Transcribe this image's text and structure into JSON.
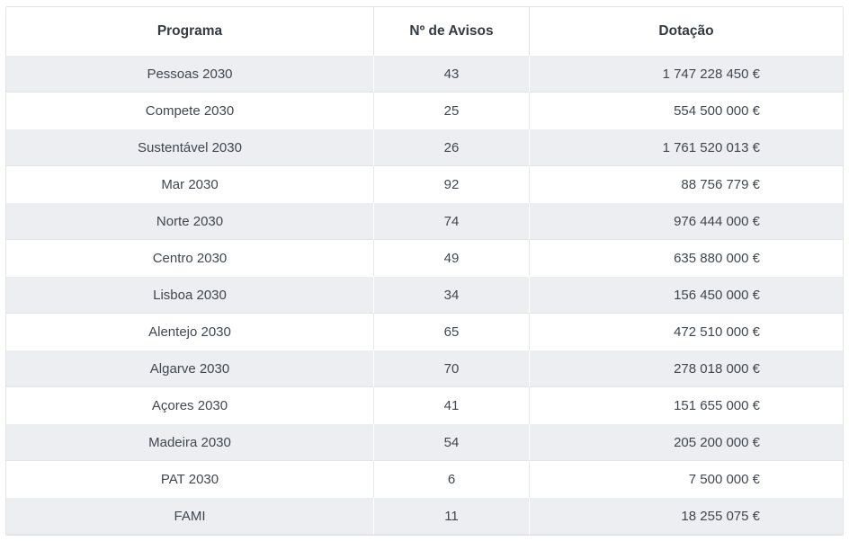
{
  "chart_data": {
    "type": "table",
    "columns": [
      "Programa",
      "Nº de Avisos",
      "Dotação"
    ],
    "rows": [
      {
        "programa": "Pessoas 2030",
        "avisos": 43,
        "dotacao": "1 747 228 450 €"
      },
      {
        "programa": "Compete 2030",
        "avisos": 25,
        "dotacao": "554 500 000 €"
      },
      {
        "programa": "Sustentável 2030",
        "avisos": 26,
        "dotacao": "1 761 520 013 €"
      },
      {
        "programa": "Mar 2030",
        "avisos": 92,
        "dotacao": "88 756 779 €"
      },
      {
        "programa": "Norte 2030",
        "avisos": 74,
        "dotacao": "976 444 000 €"
      },
      {
        "programa": "Centro 2030",
        "avisos": 49,
        "dotacao": "635 880 000 €"
      },
      {
        "programa": "Lisboa 2030",
        "avisos": 34,
        "dotacao": "156 450 000 €"
      },
      {
        "programa": "Alentejo 2030",
        "avisos": 65,
        "dotacao": "472 510 000 €"
      },
      {
        "programa": "Algarve 2030",
        "avisos": 70,
        "dotacao": "278 018 000 €"
      },
      {
        "programa": "Açores 2030",
        "avisos": 41,
        "dotacao": "151 655 000 €"
      },
      {
        "programa": "Madeira 2030",
        "avisos": 54,
        "dotacao": "205 200 000 €"
      },
      {
        "programa": "PAT 2030",
        "avisos": 6,
        "dotacao": "7 500 000 €"
      },
      {
        "programa": "FAMI",
        "avisos": 11,
        "dotacao": "18 255 075 €"
      }
    ],
    "layout": {
      "striped": true,
      "stripe_starts_on_first_row": true,
      "programa_align": "center",
      "avisos_align": "center",
      "dotacao_align": "right"
    }
  },
  "colors": {
    "stripe_row": "#eceef1",
    "table_border": "#e2e3e5",
    "header_text": "#333a41",
    "body_text": "#40474e",
    "background": "#ffffff"
  }
}
